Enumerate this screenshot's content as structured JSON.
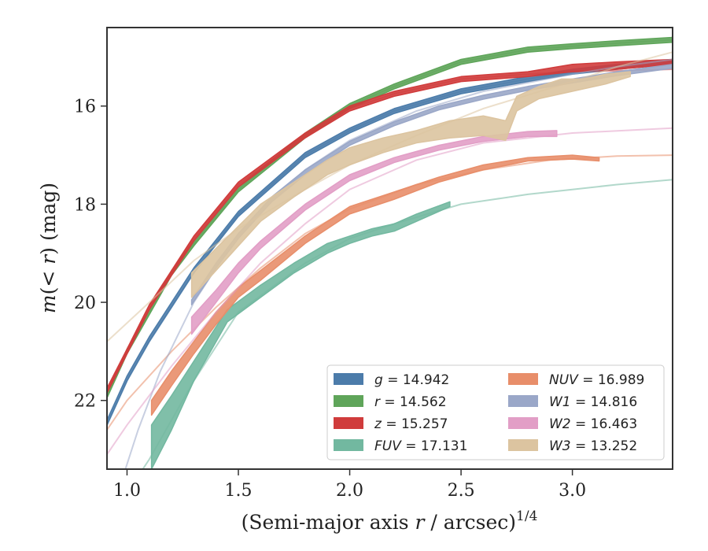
{
  "chart_data": {
    "type": "line",
    "xlabel": "(Semi-major axis r / arcsec)",
    "xlabel_superscript": "1/4",
    "xlabel_var": "r",
    "ylabel": "m(< r) (mag)",
    "ylabel_var": "m",
    "xlim": [
      0.91,
      3.45
    ],
    "ylim": [
      23.4,
      14.4
    ],
    "y_inverted": true,
    "grid": false,
    "legend_position": "lower-right",
    "xticks": [
      1.0,
      1.5,
      2.0,
      2.5,
      3.0
    ],
    "xtick_labels": [
      "1.0",
      "1.5",
      "2.0",
      "2.5",
      "3.0"
    ],
    "yticks": [
      16,
      18,
      20,
      22
    ],
    "ytick_labels": [
      "16",
      "18",
      "20",
      "22"
    ],
    "series": [
      {
        "name": "g",
        "total": "14.942",
        "color": "#4c7caa",
        "model_x": [
          0.91,
          1.0,
          1.1,
          1.2,
          1.3,
          1.5,
          1.8,
          2.0,
          2.2,
          2.5,
          2.8,
          3.0,
          3.2,
          3.45
        ],
        "model_y": [
          22.5,
          21.6,
          20.8,
          20.1,
          19.4,
          18.2,
          17.0,
          16.5,
          16.1,
          15.7,
          15.45,
          15.3,
          15.2,
          15.1
        ],
        "obs_x": [
          0.91,
          1.0,
          1.1,
          1.2,
          1.3,
          1.5,
          1.8,
          2.0,
          2.2,
          2.5,
          2.8,
          3.0,
          3.2,
          3.45
        ],
        "obs_lo": [
          22.4,
          21.5,
          20.7,
          20.0,
          19.3,
          18.15,
          16.95,
          16.45,
          16.05,
          15.65,
          15.4,
          15.25,
          15.15,
          15.05
        ],
        "obs_hi": [
          22.5,
          21.6,
          20.8,
          20.1,
          19.4,
          18.25,
          17.05,
          16.55,
          16.15,
          15.75,
          15.5,
          15.35,
          15.25,
          15.15
        ]
      },
      {
        "name": "r",
        "total": "14.562",
        "color": "#5fa55a",
        "model_x": [
          0.91,
          1.0,
          1.1,
          1.2,
          1.3,
          1.5,
          1.8,
          2.0,
          2.2,
          2.5,
          2.8,
          3.0,
          3.2,
          3.45
        ],
        "model_y": [
          21.9,
          21.0,
          20.2,
          19.4,
          18.8,
          17.7,
          16.6,
          16.0,
          15.6,
          15.1,
          14.85,
          14.78,
          14.72,
          14.65
        ],
        "obs_x": [
          0.91,
          1.0,
          1.1,
          1.2,
          1.3,
          1.5,
          1.8,
          2.0,
          2.2,
          2.5,
          2.8,
          3.0,
          3.2,
          3.45
        ],
        "obs_lo": [
          21.85,
          20.95,
          20.15,
          19.35,
          18.75,
          17.65,
          16.55,
          15.95,
          15.55,
          15.05,
          14.8,
          14.73,
          14.67,
          14.6
        ],
        "obs_hi": [
          21.95,
          21.05,
          20.25,
          19.45,
          18.85,
          17.75,
          16.65,
          16.05,
          15.65,
          15.15,
          14.9,
          14.83,
          14.77,
          14.7
        ]
      },
      {
        "name": "z",
        "total": "15.257",
        "color": "#d03c3c",
        "model_x": [
          0.91,
          1.0,
          1.1,
          1.2,
          1.3,
          1.5,
          1.8,
          2.0,
          2.2,
          2.5,
          2.8,
          3.0,
          3.2,
          3.45
        ],
        "model_y": [
          21.8,
          21.0,
          20.1,
          19.4,
          18.7,
          17.6,
          16.6,
          16.05,
          15.75,
          15.45,
          15.35,
          15.3,
          15.28,
          15.25
        ],
        "obs_x": [
          0.91,
          1.0,
          1.1,
          1.2,
          1.3,
          1.5,
          1.8,
          2.0,
          2.2,
          2.5,
          2.8,
          3.0,
          3.2,
          3.45
        ],
        "obs_lo": [
          21.75,
          20.95,
          20.05,
          19.35,
          18.65,
          17.55,
          16.55,
          16.0,
          15.7,
          15.4,
          15.3,
          15.15,
          15.1,
          15.05
        ],
        "obs_hi": [
          21.85,
          21.05,
          20.15,
          19.45,
          18.75,
          17.65,
          16.65,
          16.1,
          15.8,
          15.5,
          15.4,
          15.3,
          15.25,
          15.15
        ]
      },
      {
        "name": "FUV",
        "total": "17.131",
        "color": "#72b8a0",
        "model_x": [
          0.91,
          1.1,
          1.3,
          1.5,
          1.8,
          2.0,
          2.2,
          2.5,
          2.8,
          3.0,
          3.2,
          3.45
        ],
        "model_y": [
          24.5,
          23.2,
          21.6,
          20.2,
          19.2,
          18.7,
          18.4,
          18.0,
          17.8,
          17.7,
          17.6,
          17.5
        ],
        "obs_x": [
          1.11,
          1.2,
          1.3,
          1.45,
          1.6,
          1.75,
          1.9,
          2.0,
          2.1,
          2.2,
          2.3,
          2.45
        ],
        "obs_lo": [
          22.5,
          21.9,
          21.2,
          20.15,
          19.65,
          19.2,
          18.8,
          18.65,
          18.5,
          18.4,
          18.2,
          17.95
        ],
        "obs_hi": [
          23.4,
          22.6,
          21.6,
          20.4,
          19.9,
          19.4,
          19.0,
          18.8,
          18.65,
          18.55,
          18.35,
          18.05
        ]
      },
      {
        "name": "NUV",
        "total": "16.989",
        "color": "#e88e6a",
        "model_x": [
          0.91,
          1.0,
          1.2,
          1.4,
          1.6,
          1.8,
          2.0,
          2.3,
          2.6,
          2.9,
          3.2,
          3.45
        ],
        "model_y": [
          22.6,
          22.0,
          21.0,
          20.1,
          19.3,
          18.6,
          18.1,
          17.6,
          17.3,
          17.1,
          17.02,
          17.0
        ],
        "obs_x": [
          1.11,
          1.2,
          1.3,
          1.4,
          1.5,
          1.6,
          1.8,
          2.0,
          2.2,
          2.4,
          2.6,
          2.8,
          3.0,
          3.12
        ],
        "obs_lo": [
          22.0,
          21.4,
          20.8,
          20.2,
          19.7,
          19.35,
          18.65,
          18.05,
          17.75,
          17.45,
          17.2,
          17.05,
          17.0,
          17.05
        ],
        "obs_hi": [
          22.3,
          21.7,
          21.05,
          20.45,
          19.9,
          19.55,
          18.8,
          18.2,
          17.9,
          17.55,
          17.3,
          17.12,
          17.08,
          17.12
        ]
      },
      {
        "name": "W1",
        "total": "14.816",
        "color": "#9aa7c8",
        "model_x": [
          0.95,
          1.05,
          1.15,
          1.3,
          1.5,
          1.8,
          2.0,
          2.3,
          2.6,
          3.0,
          3.2,
          3.45
        ],
        "model_y": [
          24.0,
          22.6,
          21.4,
          20.0,
          18.6,
          17.3,
          16.7,
          16.1,
          15.7,
          15.35,
          15.2,
          15.05
        ],
        "obs_x": [
          1.29,
          1.4,
          1.5,
          1.65,
          1.8,
          2.0,
          2.2,
          2.4,
          2.6,
          2.8,
          3.0,
          3.2,
          3.45
        ],
        "obs_lo": [
          19.95,
          19.2,
          18.6,
          17.85,
          17.3,
          16.72,
          16.32,
          16.0,
          15.78,
          15.6,
          15.45,
          15.3,
          15.15
        ],
        "obs_hi": [
          20.05,
          19.3,
          18.7,
          17.95,
          17.4,
          16.8,
          16.4,
          16.08,
          15.86,
          15.68,
          15.53,
          15.38,
          15.23
        ]
      },
      {
        "name": "W2",
        "total": "16.463",
        "color": "#e29ec6",
        "model_x": [
          0.91,
          1.0,
          1.2,
          1.4,
          1.6,
          1.8,
          2.0,
          2.3,
          2.6,
          3.0,
          3.45
        ],
        "model_y": [
          23.1,
          22.5,
          21.3,
          20.2,
          19.2,
          18.4,
          17.7,
          17.1,
          16.75,
          16.55,
          16.45
        ],
        "obs_x": [
          1.29,
          1.4,
          1.5,
          1.6,
          1.8,
          2.0,
          2.2,
          2.4,
          2.6,
          2.8,
          2.93
        ],
        "obs_lo": [
          20.3,
          19.75,
          19.2,
          18.75,
          18.0,
          17.4,
          17.05,
          16.8,
          16.62,
          16.52,
          16.5
        ],
        "obs_hi": [
          20.65,
          20.0,
          19.4,
          18.9,
          18.12,
          17.52,
          17.15,
          16.9,
          16.72,
          16.62,
          16.62
        ]
      },
      {
        "name": "W3",
        "total": "13.252",
        "color": "#dcc4a0",
        "model_x": [
          0.91,
          1.1,
          1.3,
          1.5,
          1.8,
          2.0,
          2.3,
          2.6,
          3.0,
          3.2,
          3.45
        ],
        "model_y": [
          20.8,
          20.0,
          19.15,
          18.5,
          17.7,
          17.2,
          16.6,
          16.05,
          15.5,
          15.2,
          14.9
        ],
        "obs_x": [
          1.29,
          1.4,
          1.5,
          1.6,
          1.75,
          1.9,
          2.0,
          2.15,
          2.3,
          2.45,
          2.6,
          2.7,
          2.75,
          2.85,
          2.95,
          3.05,
          3.15,
          3.26
        ],
        "obs_lo": [
          19.4,
          18.9,
          18.45,
          18.0,
          17.55,
          17.1,
          16.85,
          16.65,
          16.5,
          16.3,
          16.2,
          16.3,
          15.8,
          15.6,
          15.45,
          15.45,
          15.35,
          15.3
        ],
        "obs_hi": [
          19.9,
          19.35,
          18.85,
          18.35,
          17.85,
          17.4,
          17.2,
          16.95,
          16.75,
          16.65,
          16.6,
          16.7,
          16.1,
          15.85,
          15.75,
          15.65,
          15.55,
          15.4
        ]
      }
    ],
    "legend": [
      {
        "var": "g",
        "value": "14.942",
        "color": "#4c7caa"
      },
      {
        "var": "r",
        "value": "14.562",
        "color": "#5fa55a"
      },
      {
        "var": "z",
        "value": "15.257",
        "color": "#d03c3c"
      },
      {
        "var": "FUV",
        "value": "17.131",
        "color": "#72b8a0"
      },
      {
        "var": "NUV",
        "value": "16.989",
        "color": "#e88e6a"
      },
      {
        "var": "W1",
        "value": "14.816",
        "color": "#9aa7c8"
      },
      {
        "var": "W2",
        "value": "16.463",
        "color": "#e29ec6"
      },
      {
        "var": "W3",
        "value": "13.252",
        "color": "#dcc4a0"
      }
    ]
  }
}
